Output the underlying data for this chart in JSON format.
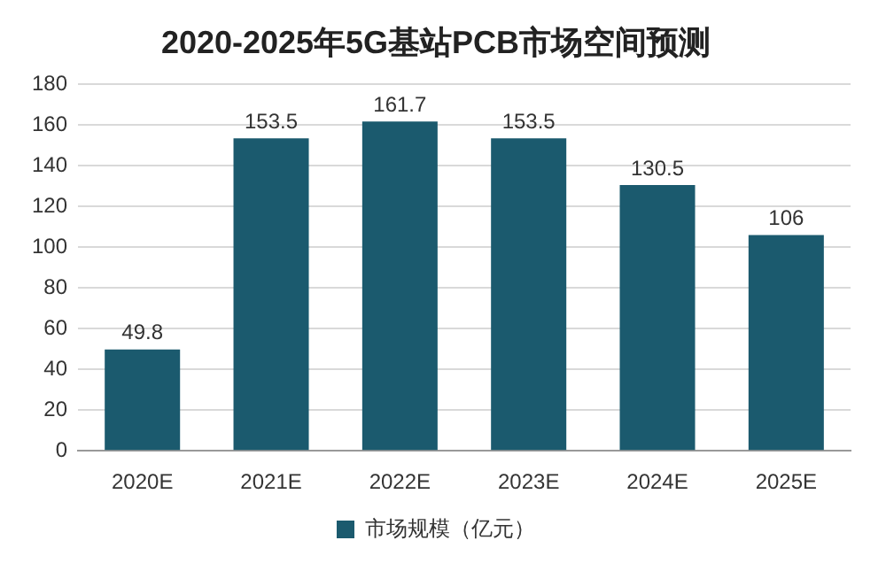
{
  "chart_data": {
    "type": "bar",
    "title": "2020-2025年5G基站PCB市场空间预测",
    "categories": [
      "2020E",
      "2021E",
      "2022E",
      "2023E",
      "2024E",
      "2025E"
    ],
    "series": [
      {
        "name": "市场规模（亿元）",
        "color": "#1b5a6e",
        "values": [
          49.8,
          153.5,
          161.7,
          153.5,
          130.5,
          106
        ]
      }
    ],
    "ylim": [
      0,
      180
    ],
    "yticks": [
      0,
      20,
      40,
      60,
      80,
      100,
      120,
      140,
      160,
      180
    ],
    "grid": "y",
    "legend": "bottom",
    "data_labels": true
  }
}
